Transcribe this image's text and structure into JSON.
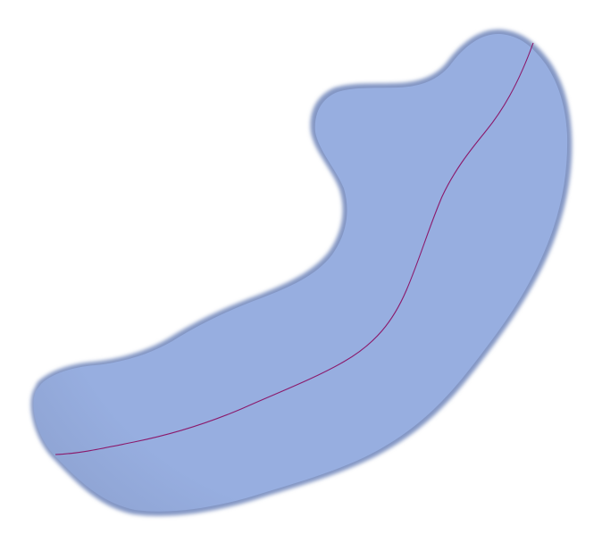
{
  "scene": {
    "background_color": "#ffffff",
    "shape": {
      "kind": "curved-tubular-surface",
      "fill_color": "#97aee0",
      "shade_color": "#8ea3d2",
      "edge_color": "#8396c4"
    },
    "centerline": {
      "kind": "curve",
      "stroke_color": "#8b1a6b"
    }
  }
}
